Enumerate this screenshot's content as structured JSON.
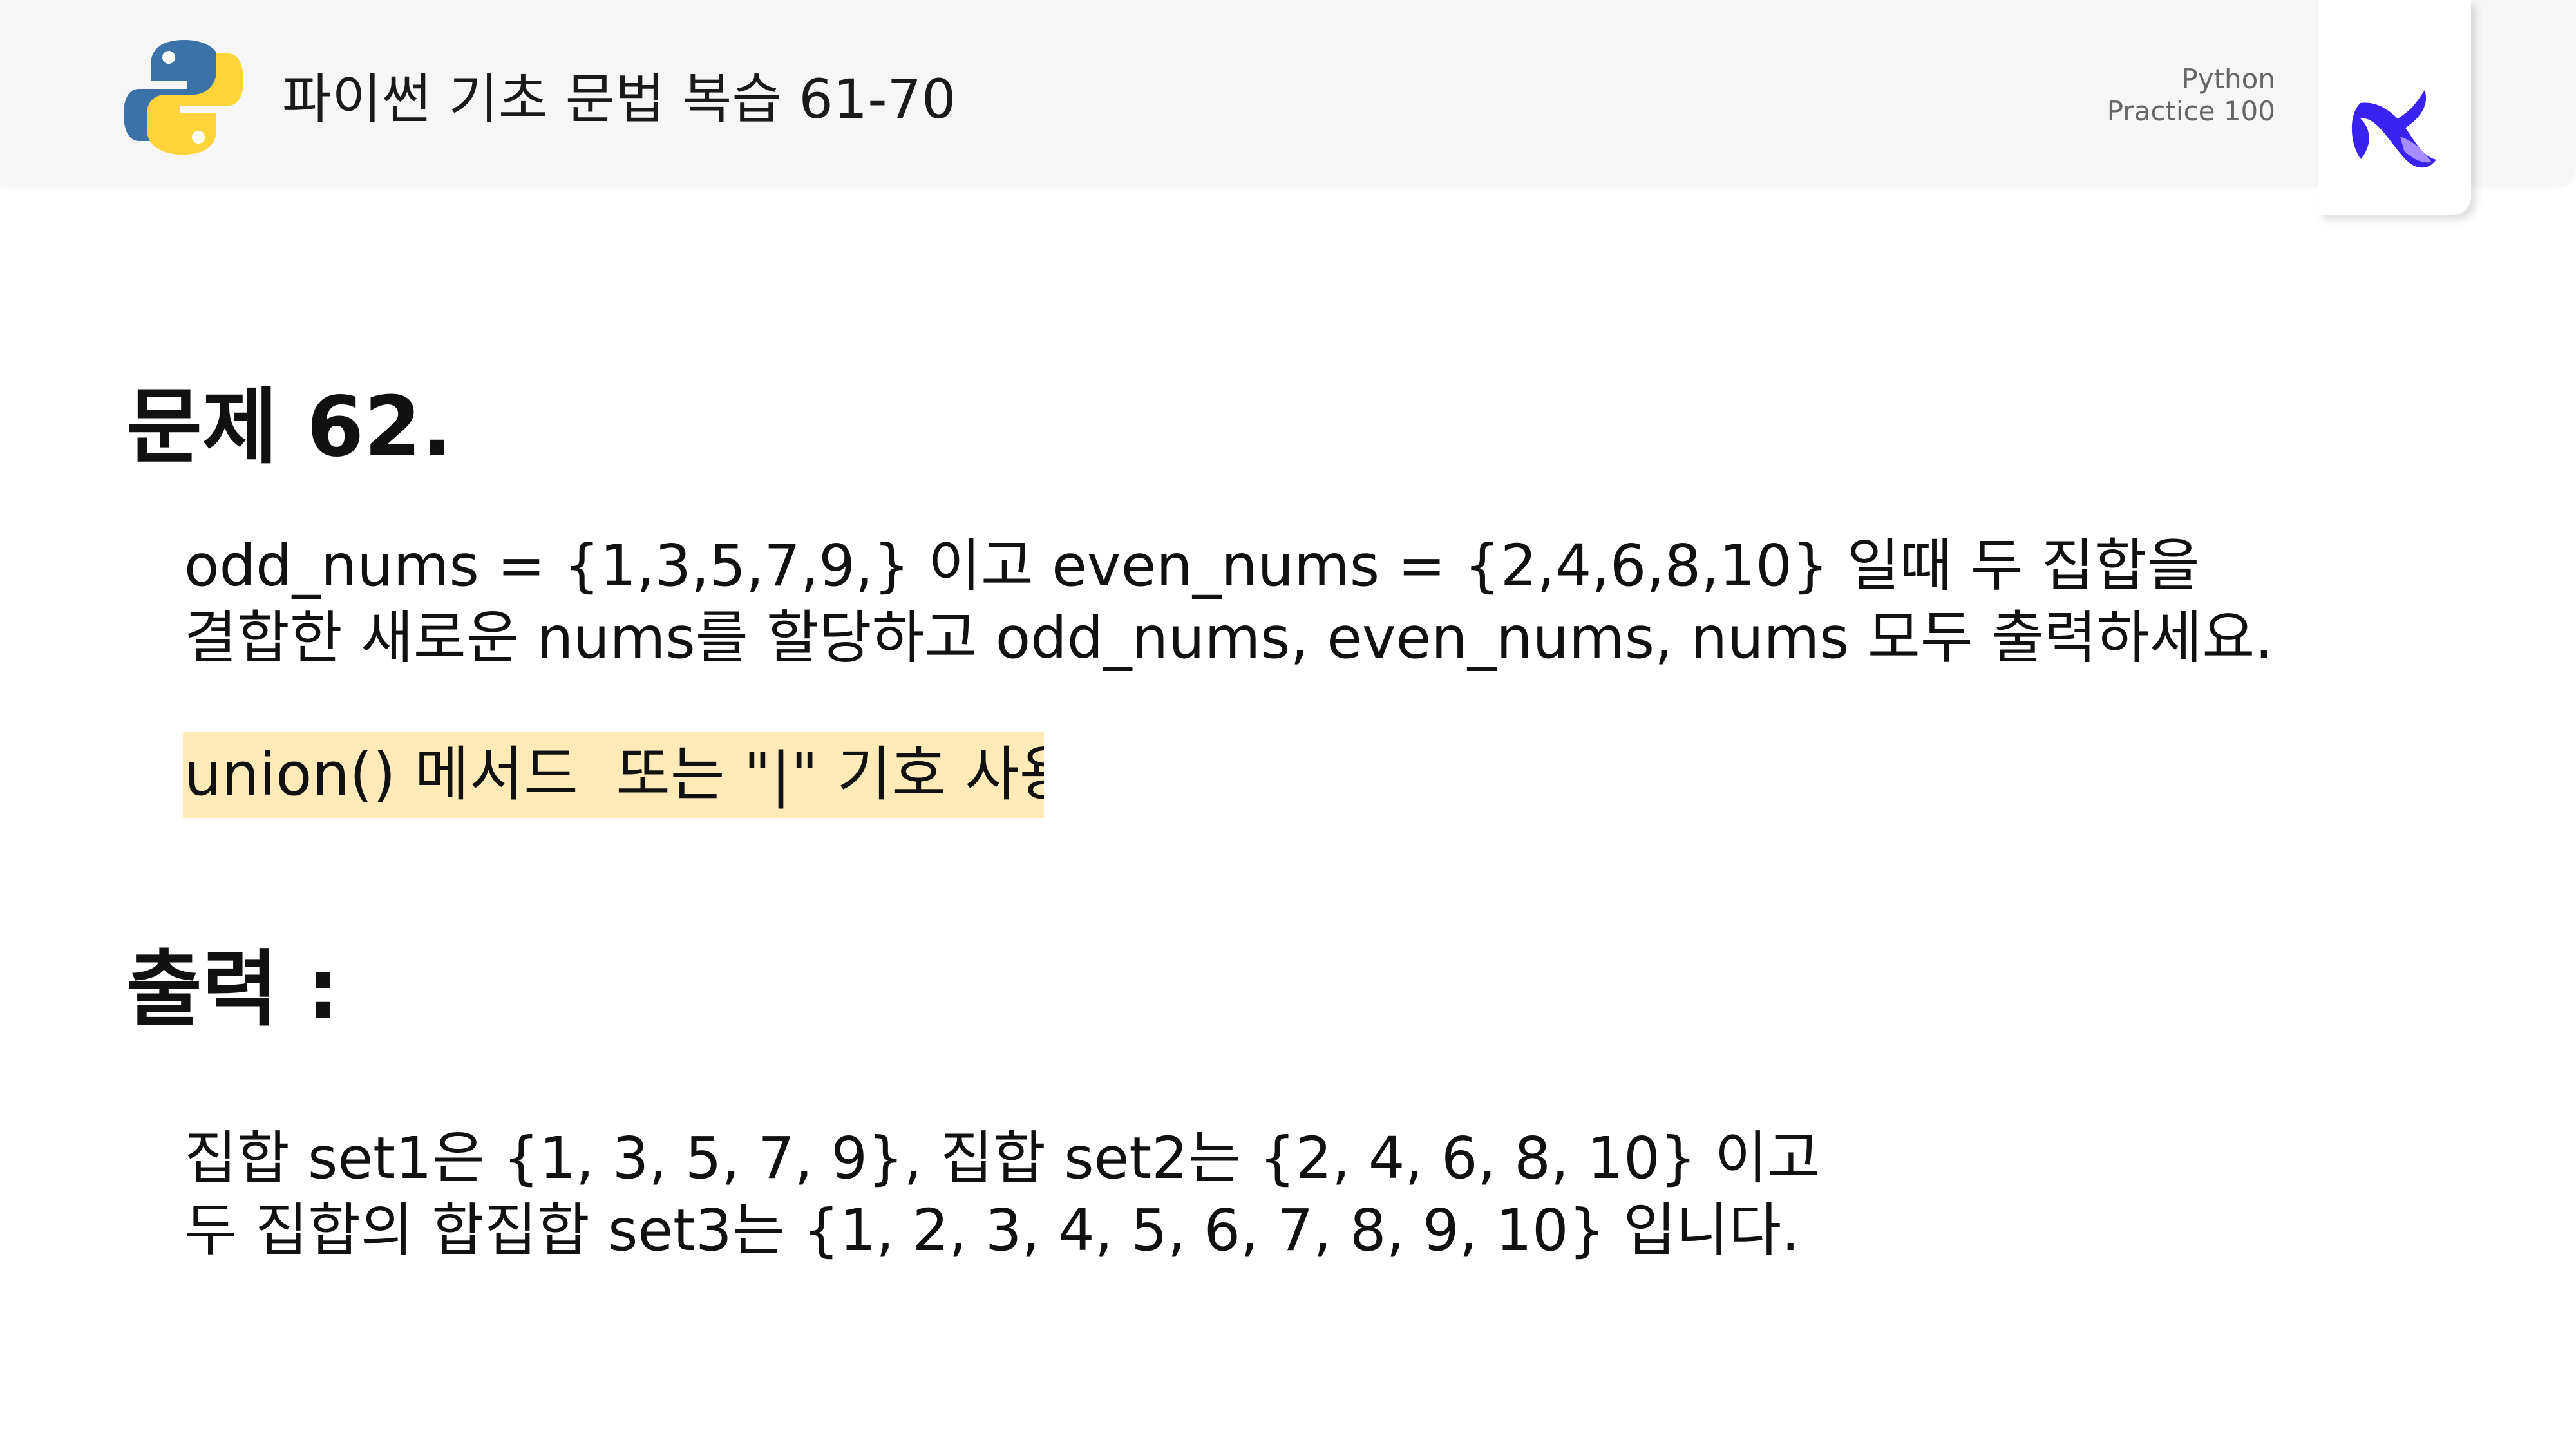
{
  "header": {
    "title": "파이썬 기초 문법 복습 61-70",
    "brand_line1": "Python",
    "brand_line2": "Practice 100"
  },
  "problem": {
    "title": "문제 62.",
    "question_line1": "odd_nums = {1,3,5,7,9,} 이고 even_nums = {2,4,6,8,10} 일때 두 집합을",
    "question_line2": "결합한 새로운 nums를 할당하고 odd_nums, even_nums, nums 모두 출력하세요.",
    "hint": "union() 메서드  또는 \"|\" 기호 사용"
  },
  "output": {
    "title": "출력 :",
    "line1": "집합 set1은 {1, 3, 5, 7, 9}, 집합 set2는 {2, 4, 6, 8, 10} 이고",
    "line2": "두 집합의 합집합 set3는 {1, 2, 3, 4, 5, 6, 7, 8, 9, 10} 입니다."
  },
  "colors": {
    "hint_highlight": "#ffeab8",
    "header_background": "#f6f6f6",
    "python_blue": "#3b73a8",
    "python_yellow": "#ffd43b",
    "brand_blue": "#3a22f0",
    "brand_violet": "#a58cff"
  },
  "icons": {
    "left": "python-logo-icon",
    "right": "brand-logo-icon"
  }
}
